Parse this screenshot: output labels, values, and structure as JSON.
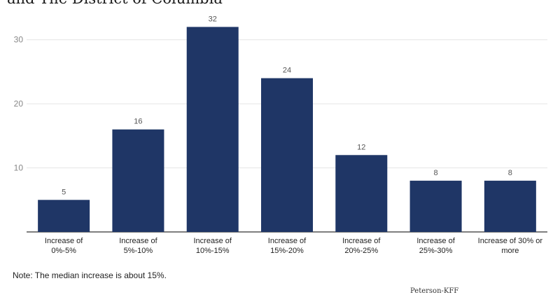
{
  "chart_data": {
    "type": "bar",
    "title": "and The District of Columbia",
    "categories": [
      [
        "Increase of",
        "0%-5%"
      ],
      [
        "Increase of",
        "5%-10%"
      ],
      [
        "Increase of",
        "10%-15%"
      ],
      [
        "Increase of",
        "15%-20%"
      ],
      [
        "Increase of",
        "20%-25%"
      ],
      [
        "Increase of",
        "25%-30%"
      ],
      [
        "Increase of 30% or",
        "more"
      ]
    ],
    "values": [
      5,
      16,
      32,
      24,
      12,
      8,
      8
    ],
    "ylim": [
      0,
      35
    ],
    "yticks": [
      10,
      20,
      30
    ],
    "grid": true,
    "colors": {
      "bar": "#1f3666",
      "grid": "#e4e4e4",
      "axis": "#555555",
      "tick_text": "#888888",
      "label_text": "#222222"
    }
  },
  "note": "Note: The median increase is about 15%.",
  "source": "Peterson-KFF"
}
